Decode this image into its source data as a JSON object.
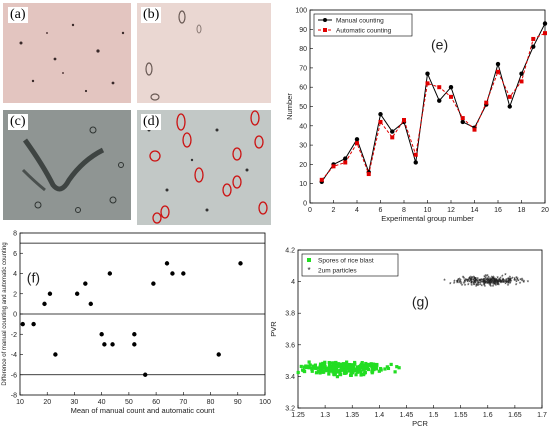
{
  "panels": {
    "a": {
      "label": "(a)"
    },
    "b": {
      "label": "(b)"
    },
    "c": {
      "label": "(c)"
    },
    "d": {
      "label": "(d)"
    }
  },
  "colors": {
    "manual": "#000000",
    "automatic": "#e00000",
    "spores": "#22dd22",
    "particles": "#e81010",
    "micro_pink": "#e6c7c2",
    "micro_gray": "#8c9290",
    "micro_light": "#c4cac7",
    "circle": "#cc1111"
  },
  "chart_data": [
    {
      "type": "line",
      "panel_label": "(e)",
      "x": [
        1,
        2,
        3,
        4,
        5,
        6,
        7,
        8,
        9,
        10,
        11,
        12,
        13,
        14,
        15,
        16,
        17,
        18,
        19,
        20
      ],
      "series": [
        {
          "name": "Manual counting",
          "values": [
            11,
            20,
            23,
            33,
            16,
            46,
            37,
            42,
            21,
            67,
            53,
            60,
            42,
            39,
            51,
            72,
            50,
            67,
            81,
            93
          ]
        },
        {
          "name": "Automatic counting",
          "values": [
            12,
            19,
            21,
            31,
            15,
            42,
            34,
            43,
            25,
            62,
            60,
            55,
            44,
            38,
            52,
            68,
            55,
            63,
            85,
            88
          ]
        }
      ],
      "xlabel": "Experimental group number",
      "ylabel": "Number",
      "xlim": [
        0,
        20
      ],
      "ylim": [
        0,
        100
      ],
      "xticks": [
        0,
        2,
        4,
        6,
        8,
        10,
        12,
        14,
        16,
        18,
        20
      ],
      "yticks": [
        0,
        10,
        20,
        30,
        40,
        50,
        60,
        70,
        80,
        90,
        100
      ],
      "legend_position": "top-left",
      "grid": false
    },
    {
      "type": "scatter",
      "panel_label": "(f)",
      "points": [
        [
          11,
          -1
        ],
        [
          15,
          -1
        ],
        [
          19,
          1
        ],
        [
          21,
          2
        ],
        [
          23,
          -4
        ],
        [
          31,
          2
        ],
        [
          34,
          3
        ],
        [
          36,
          1
        ],
        [
          40,
          -2
        ],
        [
          41,
          -3
        ],
        [
          43,
          4
        ],
        [
          44,
          -3
        ],
        [
          52,
          -2
        ],
        [
          52,
          -3
        ],
        [
          56,
          -6
        ],
        [
          59,
          3
        ],
        [
          64,
          5
        ],
        [
          66,
          4
        ],
        [
          70,
          4
        ],
        [
          83,
          -4
        ],
        [
          91,
          5
        ]
      ],
      "hlines": [
        7,
        0,
        -6
      ],
      "xlabel": "Mean of manual count and automatic count",
      "ylabel": "Difference of manual counting and automatic counting",
      "xlim": [
        10,
        100
      ],
      "ylim": [
        -8,
        8
      ],
      "xticks": [
        10,
        20,
        30,
        40,
        50,
        60,
        70,
        80,
        90,
        100
      ],
      "yticks": [
        -8,
        -6,
        -4,
        -2,
        0,
        2,
        4,
        6,
        8
      ],
      "grid": false
    },
    {
      "type": "scatter",
      "panel_label": "(g)",
      "series": [
        {
          "name": "Spores of rice blast",
          "center": [
            1.335,
            3.45
          ],
          "spread": [
            0.12,
            0.06
          ]
        },
        {
          "name": "2um particles",
          "center": [
            1.6,
            4.0
          ],
          "spread": [
            0.1,
            0.05
          ]
        }
      ],
      "xlabel": "PCR",
      "ylabel": "PVR",
      "xlim": [
        1.25,
        1.7
      ],
      "ylim": [
        3.2,
        4.2
      ],
      "xticks": [
        1.25,
        1.3,
        1.35,
        1.4,
        1.45,
        1.5,
        1.55,
        1.6,
        1.65,
        1.7
      ],
      "yticks": [
        3.2,
        3.4,
        3.6,
        3.8,
        4,
        4.2
      ],
      "legend_position": "top-left",
      "grid": false
    }
  ]
}
